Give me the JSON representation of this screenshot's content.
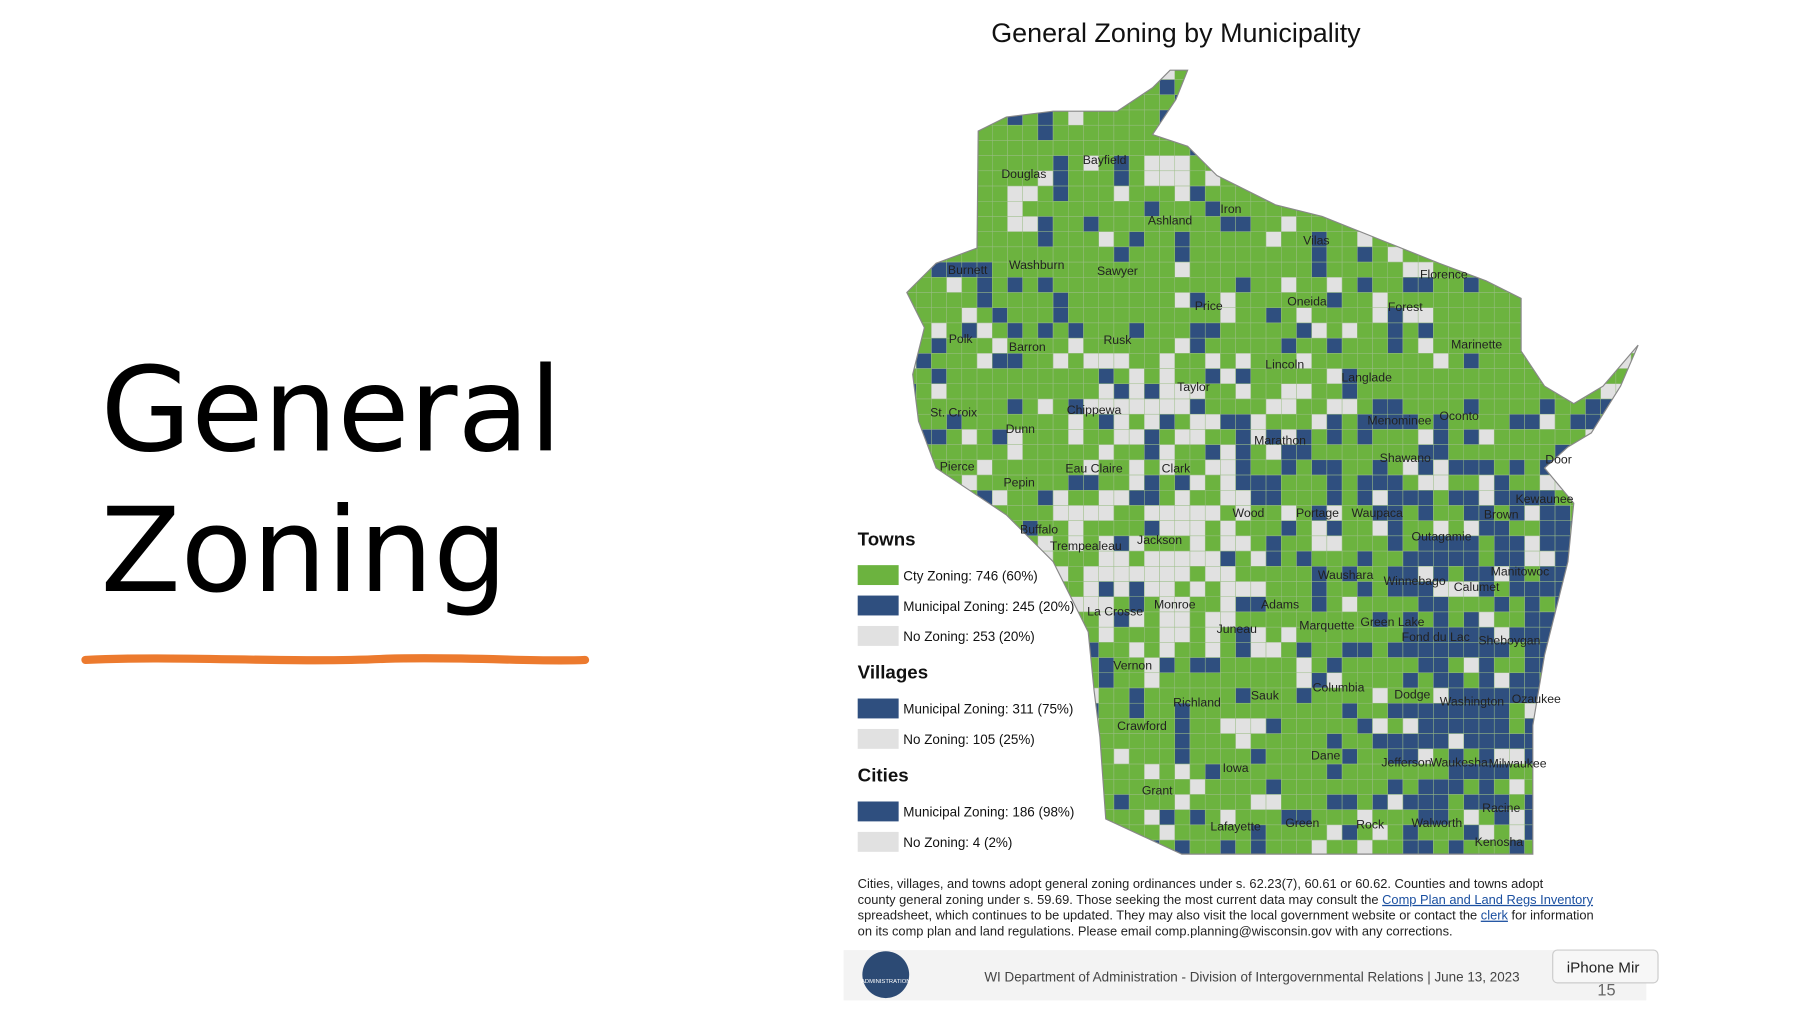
{
  "slide": {
    "title_lines": [
      "General",
      "Zoning"
    ]
  },
  "map": {
    "title": "General Zoning by Municipality",
    "colors": {
      "county": "#6cb33f",
      "municipal": "#2f4f7f",
      "none": "#e1e1e1"
    },
    "counties": [
      "Douglas",
      "Bayfield",
      "Ashland",
      "Iron",
      "Vilas",
      "Florence",
      "Forest",
      "Burnett",
      "Washburn",
      "Sawyer",
      "Price",
      "Oneida",
      "Marinette",
      "Polk",
      "Barron",
      "Rusk",
      "Lincoln",
      "Langlade",
      "Taylor",
      "St. Croix",
      "Chippewa",
      "Menominee",
      "Oconto",
      "Dunn",
      "Marathon",
      "Shawano",
      "Door",
      "Pierce",
      "Pepin",
      "Eau Claire",
      "Clark",
      "Kewaunee",
      "Wood",
      "Portage",
      "Waupaca",
      "Brown",
      "Buffalo",
      "Trempealeau",
      "Jackson",
      "Outagamie",
      "Waushara",
      "Winnebago",
      "Calumet",
      "Manitowoc",
      "La Crosse",
      "Monroe",
      "Adams",
      "Marquette",
      "Green Lake",
      "Fond du Lac",
      "Sheboygan",
      "Juneau",
      "Vernon",
      "Columbia",
      "Dodge",
      "Washington",
      "Ozaukee",
      "Sauk",
      "Richland",
      "Crawford",
      "Dane",
      "Jefferson",
      "Waukesha",
      "Milwaukee",
      "Iowa",
      "Grant",
      "Racine",
      "Lafayette",
      "Green",
      "Rock",
      "Walworth",
      "Kenosha"
    ],
    "legend": [
      {
        "heading": "Towns",
        "items": [
          {
            "label": "Cty Zoning: 746 (60%)",
            "color": "#6cb33f"
          },
          {
            "label": "Municipal Zoning: 245 (20%)",
            "color": "#2f4f7f"
          },
          {
            "label": "No Zoning: 253 (20%)",
            "color": "#e1e1e1"
          }
        ]
      },
      {
        "heading": "Villages",
        "items": [
          {
            "label": "Municipal Zoning: 311 (75%)",
            "color": "#2f4f7f"
          },
          {
            "label": "No Zoning: 105 (25%)",
            "color": "#e1e1e1"
          }
        ]
      },
      {
        "heading": "Cities",
        "items": [
          {
            "label": "Municipal Zoning: 186 (98%)",
            "color": "#2f4f7f"
          },
          {
            "label": "No Zoning: 4 (2%)",
            "color": "#e1e1e1"
          }
        ]
      }
    ],
    "footnote": [
      [
        {
          "text": "Cities, villages, and towns adopt general zoning ordinances under s. 62.23(7), 60.61 or 60.62. Counties and towns adopt",
          "link": false
        }
      ],
      [
        {
          "text": "county general zoning under s. 59.69. Those seeking the most current data may consult the ",
          "link": false
        },
        {
          "text": "Comp Plan and Land Regs Inventory",
          "link": true
        }
      ],
      [
        {
          "text": "spreadsheet, which continues to be updated. They may also visit the local government website or contact the ",
          "link": false
        },
        {
          "text": "clerk",
          "link": true
        },
        {
          "text": " for information",
          "link": false
        }
      ],
      [
        {
          "text": "on its comp plan and land regulations. Please email comp.planning@wisconsin.gov with any corrections.",
          "link": false
        }
      ]
    ],
    "footer": {
      "logo_text": "ADMINISTRATION",
      "text": "WI Department of Administration - Division of Intergovernmental Relations | June 13, 2023",
      "page": "15"
    }
  },
  "overlay": {
    "label": "iPhone Mir"
  }
}
